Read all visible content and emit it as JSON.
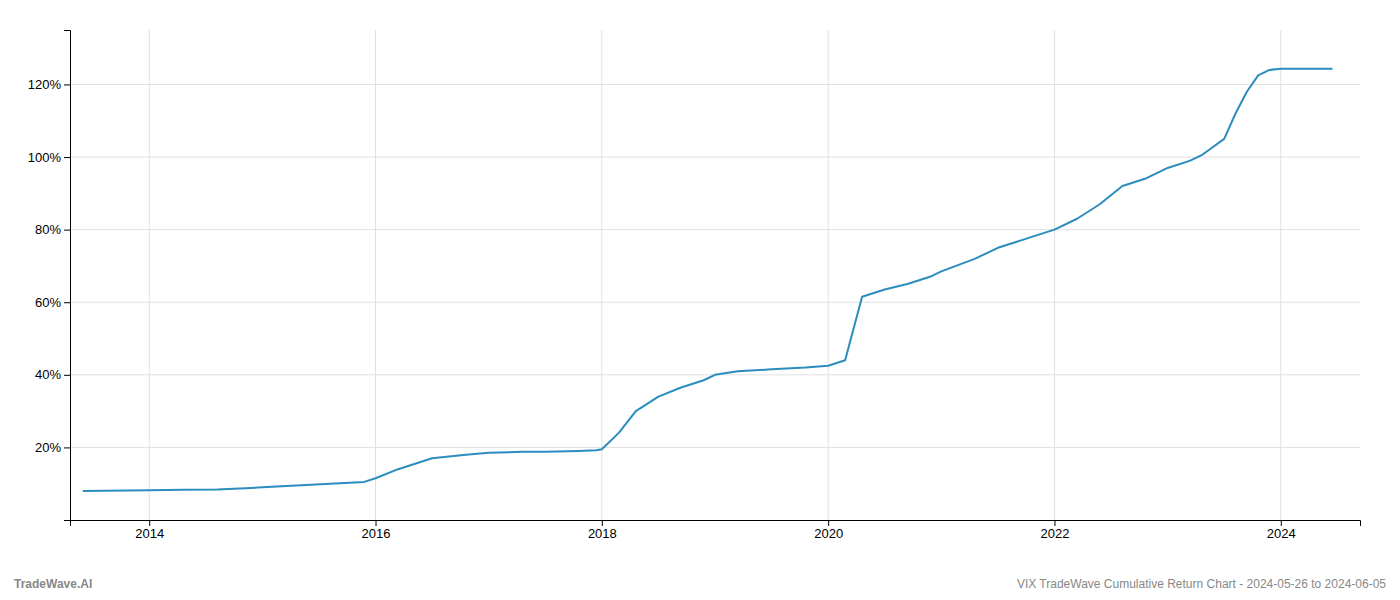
{
  "chart_data": {
    "type": "line",
    "title": "VIX TradeWave Cumulative Return Chart - 2024-05-26 to 2024-06-05",
    "annotations": [
      "TradeWave.AI"
    ],
    "color": "#2b8cbe",
    "x": [
      2013.42,
      2014.0,
      2014.3,
      2014.6,
      2014.9,
      2015.0,
      2015.3,
      2015.6,
      2015.9,
      2016.0,
      2016.2,
      2016.5,
      2016.8,
      2017.0,
      2017.3,
      2017.5,
      2017.8,
      2017.95,
      2018.0,
      2018.15,
      2018.3,
      2018.5,
      2018.7,
      2018.9,
      2019.0,
      2019.2,
      2019.5,
      2019.8,
      2020.0,
      2020.15,
      2020.3,
      2020.5,
      2020.7,
      2020.9,
      2021.0,
      2021.3,
      2021.5,
      2021.8,
      2022.0,
      2022.2,
      2022.4,
      2022.6,
      2022.8,
      2023.0,
      2023.2,
      2023.3,
      2023.5,
      2023.6,
      2023.7,
      2023.8,
      2023.9,
      2024.0,
      2024.1,
      2024.2,
      2024.3,
      2024.45
    ],
    "values": [
      8.0,
      8.2,
      8.3,
      8.4,
      8.8,
      9.0,
      9.5,
      10.0,
      10.5,
      11.5,
      14.0,
      17.0,
      18.0,
      18.5,
      18.8,
      18.8,
      19.0,
      19.2,
      19.5,
      24.0,
      30.0,
      34.0,
      36.5,
      38.5,
      40.0,
      41.0,
      41.5,
      42.0,
      42.5,
      44.0,
      61.5,
      63.5,
      65.0,
      67.0,
      68.5,
      72.0,
      75.0,
      78.0,
      80.0,
      83.0,
      87.0,
      92.0,
      94.0,
      97.0,
      99.0,
      100.5,
      105.0,
      112.0,
      118.0,
      122.5,
      124.0,
      124.3,
      124.3,
      124.3,
      124.3,
      124.3
    ],
    "xlim": [
      2013.3,
      2024.7
    ],
    "ylim": [
      0,
      135
    ],
    "xticks": [
      2014,
      2016,
      2018,
      2020,
      2022,
      2024
    ],
    "yticks": [
      {
        "value": 20,
        "label": "20%"
      },
      {
        "value": 40,
        "label": "40%"
      },
      {
        "value": 60,
        "label": "60%"
      },
      {
        "value": 80,
        "label": "80%"
      },
      {
        "value": 100,
        "label": "100%"
      },
      {
        "value": 120,
        "label": "120%"
      }
    ],
    "grid": true
  }
}
